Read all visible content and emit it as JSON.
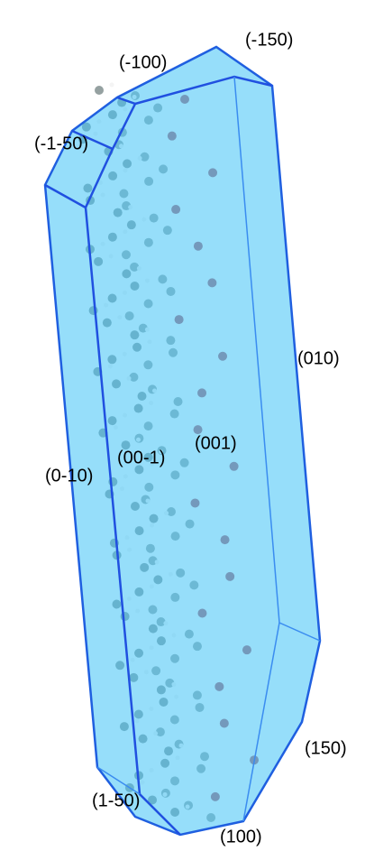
{
  "faces": [
    {
      "label": "(-150)"
    },
    {
      "label": "(-100)"
    },
    {
      "label": "(-1-50)"
    },
    {
      "label": "(010)"
    },
    {
      "label": "(00-1)"
    },
    {
      "label": "(001)"
    },
    {
      "label": "(0-10)"
    },
    {
      "label": "(150)"
    },
    {
      "label": "(1-50)"
    },
    {
      "label": "(100)"
    }
  ]
}
